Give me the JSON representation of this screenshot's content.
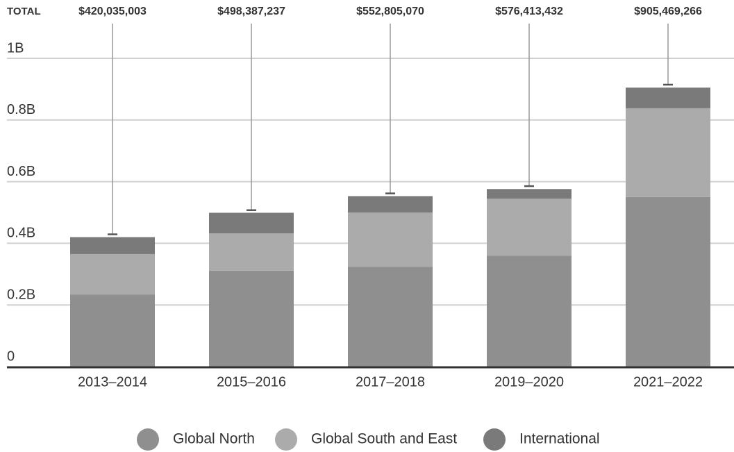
{
  "chart_data": {
    "type": "stacked_bar",
    "categories": [
      "2013–2014",
      "2015–2016",
      "2017–2018",
      "2019–2020",
      "2021–2022"
    ],
    "series": [
      {
        "name": "Global North",
        "color": "#8f8f8f",
        "values": [
          234000000,
          311000000,
          324000000,
          360000000,
          550000000
        ]
      },
      {
        "name": "Global South and East",
        "color": "#ababab",
        "values": [
          131000000,
          121000000,
          176000000,
          185000000,
          288000000
        ]
      },
      {
        "name": "International",
        "color": "#7a7a7a",
        "values": [
          55000000,
          67000000,
          53000000,
          31000000,
          67000000
        ]
      }
    ],
    "totals_label": "TOTAL",
    "totals": {
      "values": [
        420035003,
        498387237,
        552805070,
        576413432,
        905469266
      ],
      "value_labels": [
        "$420,035,003",
        "$498,387,237",
        "$552,805,070",
        "$576,413,432",
        "$905,469,266"
      ]
    },
    "ylim": [
      0,
      1000000000
    ],
    "yticks": [
      0,
      {
        "value": 200000000,
        "label": "0.2B"
      },
      {
        "value": 400000000,
        "label": "0.4B"
      },
      {
        "value": 600000000,
        "label": "0.6B"
      },
      {
        "value": 800000000,
        "label": "0.8B"
      },
      {
        "value": 1000000000,
        "label": "1B"
      }
    ],
    "grid": true
  }
}
